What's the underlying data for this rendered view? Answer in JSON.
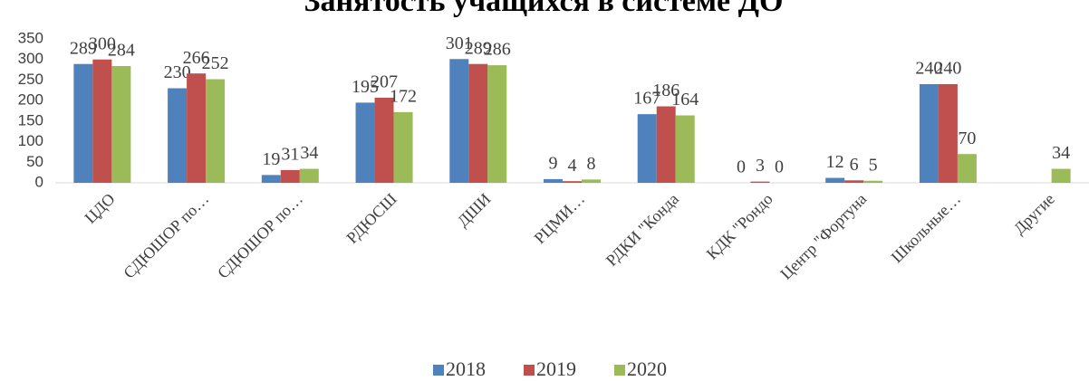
{
  "chart_data": {
    "type": "bar",
    "title": "Занятость учащихся в системе ДО",
    "categories": [
      "ЦДО",
      "СДЮШОР по…",
      "СДЮШОР по…",
      "РДЮСШ",
      "ДШИ",
      "РЦМИ…",
      "РДКИ \"Конда",
      "КДК \"Рондо",
      "Центр \"Фортуна",
      "Школьные…",
      "Другие"
    ],
    "series": [
      {
        "name": "2018",
        "color": "#4f81bd",
        "values": [
          289,
          230,
          19,
          195,
          301,
          9,
          167,
          0,
          12,
          240,
          null
        ]
      },
      {
        "name": "2019",
        "color": "#c0504d",
        "values": [
          300,
          266,
          31,
          207,
          289,
          4,
          186,
          3,
          6,
          240,
          null
        ]
      },
      {
        "name": "2020",
        "color": "#9bbb59",
        "values": [
          284,
          252,
          34,
          172,
          286,
          8,
          164,
          0,
          5,
          70,
          34
        ]
      }
    ],
    "ylim": [
      0,
      350
    ],
    "yticks": [
      0,
      50,
      100,
      150,
      200,
      250,
      300,
      350
    ],
    "grid": false,
    "legend": "bottom"
  }
}
